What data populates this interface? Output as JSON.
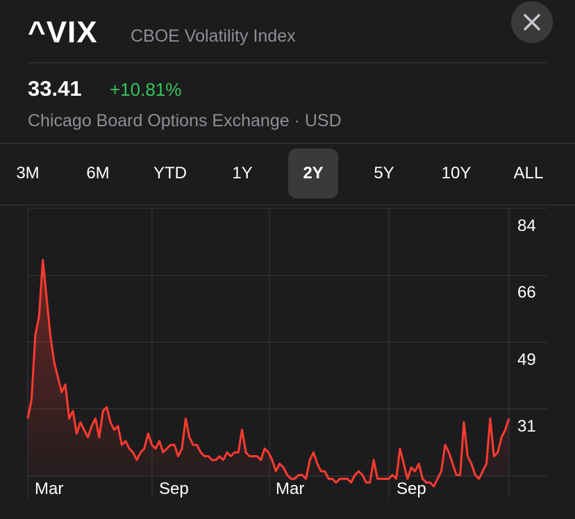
{
  "header": {
    "symbol": "^VIX",
    "name": "CBOE Volatility Index",
    "price": "33.41",
    "change": "+10.81%",
    "exchange": "Chicago Board Options Exchange · USD",
    "change_color": "#34c759"
  },
  "close_icon": "close-icon",
  "ranges": {
    "items": [
      "3M",
      "6M",
      "YTD",
      "1Y",
      "2Y",
      "5Y",
      "10Y",
      "ALL"
    ],
    "selected": "2Y"
  },
  "chart_data": {
    "type": "area",
    "line_color": "#ff3b30",
    "y_ticks": [
      "84",
      "66",
      "49",
      "31"
    ],
    "ylim": [
      14,
      84
    ],
    "x_ticks": [
      "Mar",
      "Sep",
      "Mar",
      "Sep"
    ],
    "grid": true,
    "values": [
      33,
      38,
      55,
      60,
      75,
      65,
      55,
      48,
      44,
      40,
      42,
      33,
      35,
      29,
      32,
      30,
      28,
      31,
      33,
      28,
      35,
      36,
      32,
      30,
      31,
      26,
      27,
      25,
      24,
      22,
      24,
      25,
      29,
      26,
      25,
      27,
      24,
      25,
      26,
      26,
      23,
      25,
      33,
      28,
      26,
      26,
      24,
      23,
      23,
      22,
      22,
      23,
      22,
      24,
      23,
      24,
      24,
      30,
      24,
      23,
      23,
      23,
      22,
      25,
      24,
      22,
      19,
      21,
      20,
      18,
      17,
      17,
      18,
      18,
      17,
      22,
      24,
      21,
      19,
      19,
      17,
      17,
      16,
      17,
      17,
      17,
      16,
      18,
      19,
      18,
      16,
      16,
      22,
      17,
      17,
      17,
      17,
      18,
      17,
      25,
      21,
      17,
      20,
      19,
      21,
      17,
      16,
      16,
      15,
      17,
      19,
      26,
      24,
      21,
      18,
      18,
      32,
      23,
      21,
      18,
      17,
      19,
      21,
      33,
      23,
      24,
      28,
      30,
      33
    ]
  }
}
